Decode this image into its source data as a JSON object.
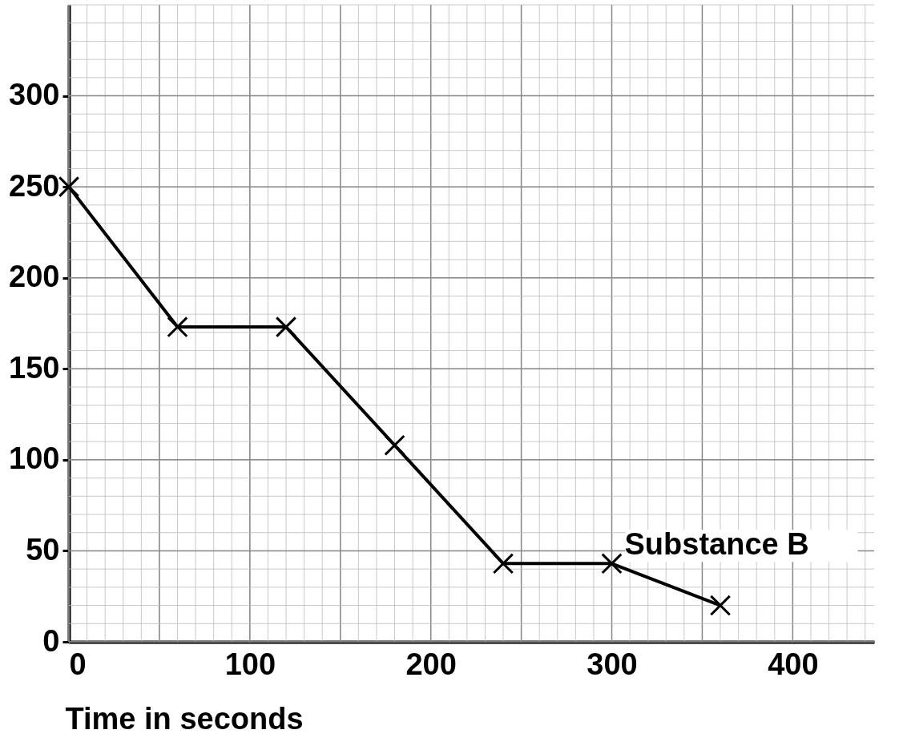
{
  "chart_data": {
    "type": "line",
    "xlabel": "Time in seconds",
    "x": [
      0,
      60,
      120,
      180,
      240,
      300,
      360
    ],
    "series": [
      {
        "name": "Substance B",
        "color": "#000000",
        "values": [
          250,
          173,
          173,
          108,
          43,
          43,
          20
        ]
      }
    ],
    "xlim": [
      0,
      445
    ],
    "ylim": [
      0,
      350
    ],
    "xticks": [
      0,
      {
        "value": 50,
        "label": null
      },
      100,
      {
        "value": 150,
        "label": null
      },
      200,
      {
        "value": 250,
        "label": null
      },
      300,
      {
        "value": 350,
        "label": null
      },
      400
    ],
    "yticks": [
      0,
      50,
      100,
      150,
      200,
      250,
      300
    ],
    "grid": true,
    "marker": "cross",
    "line_style": "solid"
  }
}
